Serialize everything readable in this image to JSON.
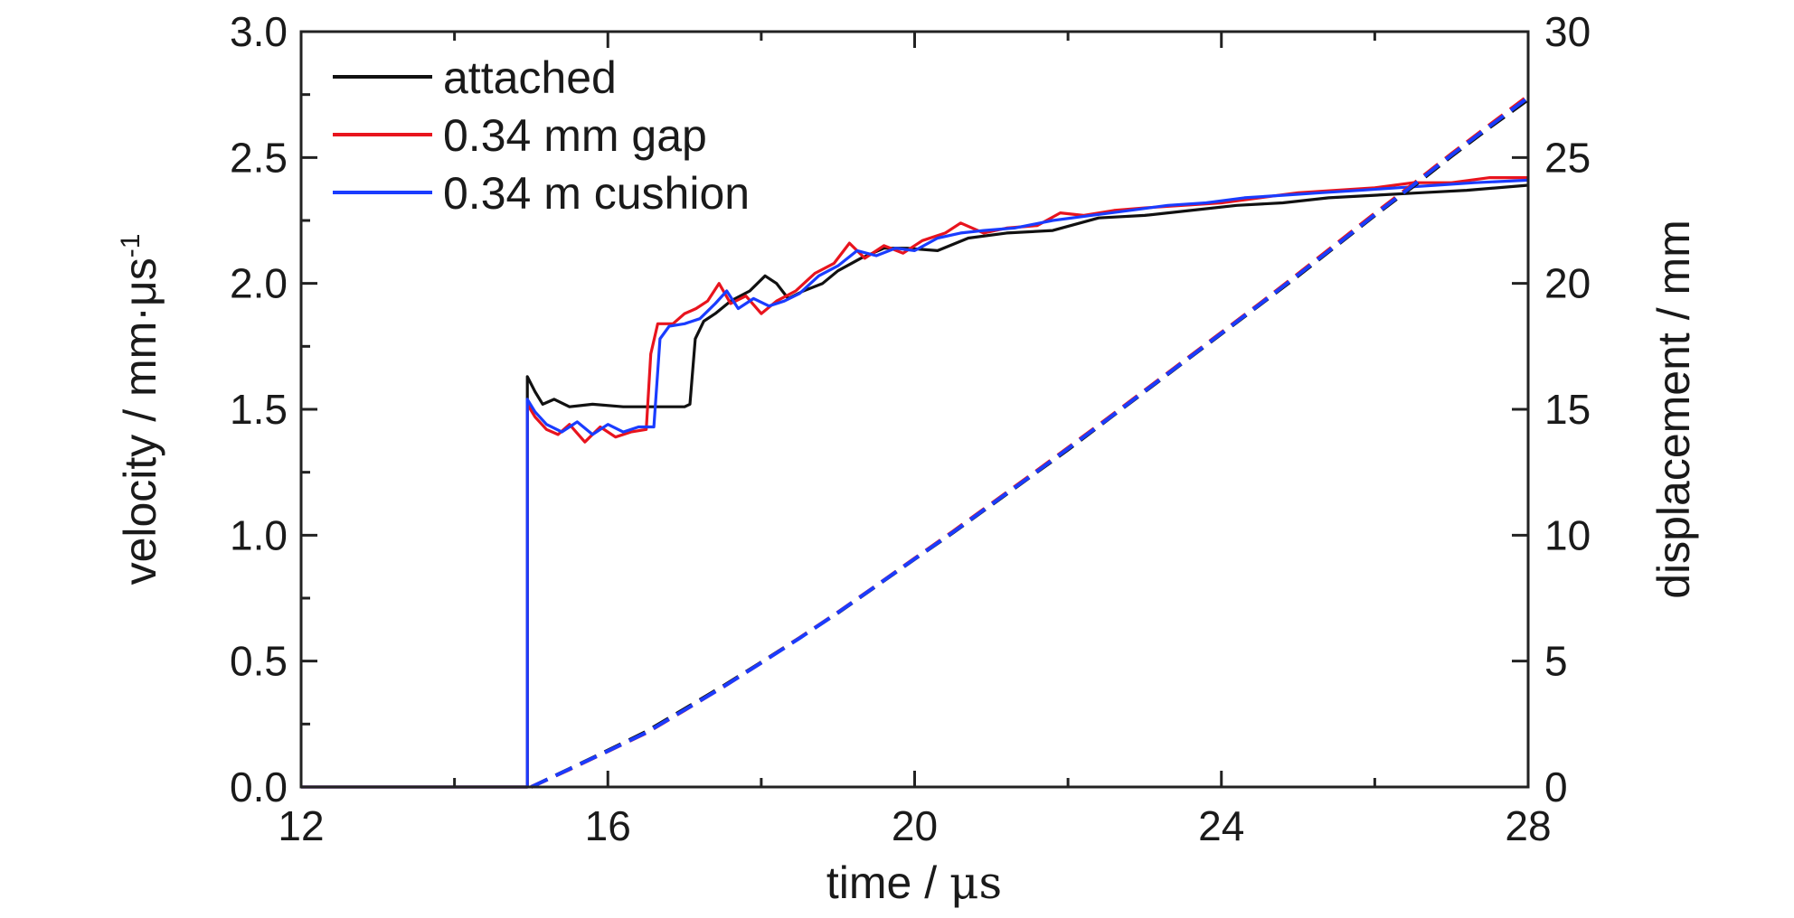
{
  "chart_data": {
    "type": "line",
    "x_axis": {
      "label_main": "time / ",
      "label_unit": "μs",
      "range": [
        12,
        28
      ],
      "ticks": [
        "12",
        "16",
        "20",
        "24",
        "28"
      ],
      "minor_step": 2
    },
    "y_left": {
      "label_main": "velocity / mm·μs",
      "label_sup": "-1",
      "range": [
        0,
        3
      ],
      "ticks": [
        "0.0",
        "0.5",
        "1.0",
        "1.5",
        "2.0",
        "2.5",
        "3.0"
      ],
      "minor_step": 0.25
    },
    "y_right": {
      "label": "displacement / mm",
      "range": [
        0,
        30
      ],
      "ticks": [
        "0",
        "5",
        "10",
        "15",
        "20",
        "25",
        "30"
      ]
    },
    "legend_position": "top-left",
    "grid": false,
    "series": [
      {
        "name": "attached",
        "color": "#111111",
        "axis": "left",
        "style": "solid",
        "points": [
          [
            12,
            0
          ],
          [
            14.95,
            0
          ],
          [
            14.95,
            1.63
          ],
          [
            15.05,
            1.57
          ],
          [
            15.15,
            1.52
          ],
          [
            15.3,
            1.54
          ],
          [
            15.5,
            1.51
          ],
          [
            15.8,
            1.52
          ],
          [
            16.2,
            1.51
          ],
          [
            16.6,
            1.51
          ],
          [
            17.0,
            1.51
          ],
          [
            17.07,
            1.52
          ],
          [
            17.14,
            1.78
          ],
          [
            17.25,
            1.85
          ],
          [
            17.4,
            1.88
          ],
          [
            17.6,
            1.93
          ],
          [
            17.85,
            1.97
          ],
          [
            18.05,
            2.03
          ],
          [
            18.2,
            2.0
          ],
          [
            18.35,
            1.94
          ],
          [
            18.55,
            1.97
          ],
          [
            18.8,
            2.0
          ],
          [
            19.0,
            2.05
          ],
          [
            19.3,
            2.1
          ],
          [
            19.6,
            2.14
          ],
          [
            19.9,
            2.14
          ],
          [
            20.3,
            2.13
          ],
          [
            20.7,
            2.18
          ],
          [
            21.2,
            2.2
          ],
          [
            21.8,
            2.21
          ],
          [
            22.4,
            2.26
          ],
          [
            23.0,
            2.27
          ],
          [
            23.6,
            2.29
          ],
          [
            24.2,
            2.31
          ],
          [
            24.8,
            2.32
          ],
          [
            25.4,
            2.34
          ],
          [
            26.0,
            2.35
          ],
          [
            26.6,
            2.36
          ],
          [
            27.2,
            2.37
          ],
          [
            28,
            2.39
          ]
        ]
      },
      {
        "name": "0.34 mm gap",
        "color": "#e8141e",
        "axis": "left",
        "style": "solid",
        "points": [
          [
            12,
            0
          ],
          [
            14.95,
            0
          ],
          [
            14.95,
            1.52
          ],
          [
            15.05,
            1.47
          ],
          [
            15.2,
            1.42
          ],
          [
            15.35,
            1.4
          ],
          [
            15.5,
            1.44
          ],
          [
            15.7,
            1.37
          ],
          [
            15.9,
            1.43
          ],
          [
            16.1,
            1.39
          ],
          [
            16.3,
            1.41
          ],
          [
            16.5,
            1.42
          ],
          [
            16.56,
            1.72
          ],
          [
            16.65,
            1.84
          ],
          [
            16.85,
            1.84
          ],
          [
            17.0,
            1.88
          ],
          [
            17.15,
            1.9
          ],
          [
            17.3,
            1.93
          ],
          [
            17.45,
            2.0
          ],
          [
            17.6,
            1.92
          ],
          [
            17.8,
            1.95
          ],
          [
            18.0,
            1.88
          ],
          [
            18.2,
            1.93
          ],
          [
            18.45,
            1.97
          ],
          [
            18.7,
            2.04
          ],
          [
            18.95,
            2.08
          ],
          [
            19.15,
            2.16
          ],
          [
            19.35,
            2.1
          ],
          [
            19.6,
            2.15
          ],
          [
            19.85,
            2.12
          ],
          [
            20.1,
            2.17
          ],
          [
            20.4,
            2.2
          ],
          [
            20.6,
            2.24
          ],
          [
            20.9,
            2.2
          ],
          [
            21.2,
            2.22
          ],
          [
            21.6,
            2.23
          ],
          [
            21.9,
            2.28
          ],
          [
            22.2,
            2.27
          ],
          [
            22.6,
            2.29
          ],
          [
            23.0,
            2.3
          ],
          [
            23.5,
            2.31
          ],
          [
            24.0,
            2.32
          ],
          [
            24.5,
            2.34
          ],
          [
            25.0,
            2.36
          ],
          [
            25.5,
            2.37
          ],
          [
            26.0,
            2.38
          ],
          [
            26.5,
            2.4
          ],
          [
            27.0,
            2.4
          ],
          [
            27.5,
            2.42
          ],
          [
            28,
            2.42
          ]
        ]
      },
      {
        "name": "0.34 m cushion",
        "color": "#1a3cff",
        "axis": "left",
        "style": "solid",
        "points": [
          [
            12,
            0
          ],
          [
            14.95,
            0
          ],
          [
            14.95,
            1.54
          ],
          [
            15.05,
            1.49
          ],
          [
            15.2,
            1.44
          ],
          [
            15.4,
            1.41
          ],
          [
            15.6,
            1.45
          ],
          [
            15.8,
            1.4
          ],
          [
            16.0,
            1.44
          ],
          [
            16.2,
            1.41
          ],
          [
            16.4,
            1.43
          ],
          [
            16.6,
            1.43
          ],
          [
            16.68,
            1.78
          ],
          [
            16.8,
            1.83
          ],
          [
            17.0,
            1.84
          ],
          [
            17.2,
            1.86
          ],
          [
            17.4,
            1.92
          ],
          [
            17.55,
            1.97
          ],
          [
            17.7,
            1.9
          ],
          [
            17.9,
            1.94
          ],
          [
            18.1,
            1.91
          ],
          [
            18.3,
            1.93
          ],
          [
            18.5,
            1.96
          ],
          [
            18.75,
            2.03
          ],
          [
            19.0,
            2.07
          ],
          [
            19.25,
            2.13
          ],
          [
            19.5,
            2.11
          ],
          [
            19.75,
            2.14
          ],
          [
            20.0,
            2.13
          ],
          [
            20.3,
            2.18
          ],
          [
            20.6,
            2.2
          ],
          [
            20.9,
            2.21
          ],
          [
            21.3,
            2.22
          ],
          [
            21.8,
            2.25
          ],
          [
            22.3,
            2.27
          ],
          [
            22.8,
            2.29
          ],
          [
            23.3,
            2.31
          ],
          [
            23.8,
            2.32
          ],
          [
            24.3,
            2.34
          ],
          [
            24.8,
            2.35
          ],
          [
            25.3,
            2.36
          ],
          [
            25.8,
            2.37
          ],
          [
            26.3,
            2.38
          ],
          [
            26.8,
            2.39
          ],
          [
            27.3,
            2.4
          ],
          [
            28,
            2.41
          ]
        ]
      },
      {
        "name": "",
        "color": "#111111",
        "axis": "right",
        "style": "dashed",
        "points": [
          [
            15.0,
            0
          ],
          [
            15.5,
            0.72
          ],
          [
            16,
            1.45
          ],
          [
            16.5,
            2.2
          ],
          [
            17,
            3.1
          ],
          [
            17.5,
            4.0
          ],
          [
            18,
            4.95
          ],
          [
            18.5,
            5.92
          ],
          [
            19,
            6.92
          ],
          [
            19.5,
            7.98
          ],
          [
            20,
            9.05
          ],
          [
            20.5,
            10.1
          ],
          [
            21,
            11.2
          ],
          [
            21.5,
            12.3
          ],
          [
            22,
            13.4
          ],
          [
            22.5,
            14.55
          ],
          [
            23,
            15.7
          ],
          [
            23.5,
            16.85
          ],
          [
            24,
            18.0
          ],
          [
            24.5,
            19.15
          ],
          [
            25,
            20.3
          ],
          [
            25.5,
            21.5
          ],
          [
            26,
            22.7
          ],
          [
            26.5,
            23.85
          ],
          [
            27,
            25.05
          ],
          [
            27.5,
            26.2
          ],
          [
            28,
            27.3
          ]
        ]
      },
      {
        "name": "",
        "color": "#e8141e",
        "axis": "right",
        "style": "dashed",
        "points": [
          [
            15.0,
            0
          ],
          [
            15.5,
            0.7
          ],
          [
            16,
            1.42
          ],
          [
            16.5,
            2.15
          ],
          [
            17,
            3.05
          ],
          [
            17.5,
            3.97
          ],
          [
            18,
            4.93
          ],
          [
            18.5,
            5.92
          ],
          [
            19,
            6.94
          ],
          [
            19.5,
            8.0
          ],
          [
            20,
            9.08
          ],
          [
            20.5,
            10.15
          ],
          [
            21,
            11.25
          ],
          [
            21.5,
            12.35
          ],
          [
            22,
            13.47
          ],
          [
            22.5,
            14.6
          ],
          [
            23,
            15.75
          ],
          [
            23.5,
            16.9
          ],
          [
            24,
            18.05
          ],
          [
            24.5,
            19.2
          ],
          [
            25,
            20.38
          ],
          [
            25.5,
            21.58
          ],
          [
            26,
            22.78
          ],
          [
            26.5,
            23.95
          ],
          [
            27,
            25.15
          ],
          [
            27.5,
            26.3
          ],
          [
            28,
            27.45
          ]
        ]
      },
      {
        "name": "",
        "color": "#1a3cff",
        "axis": "right",
        "style": "dashed",
        "points": [
          [
            15.0,
            0
          ],
          [
            15.5,
            0.71
          ],
          [
            16,
            1.43
          ],
          [
            16.5,
            2.16
          ],
          [
            17,
            3.06
          ],
          [
            17.5,
            3.97
          ],
          [
            18,
            4.93
          ],
          [
            18.5,
            5.91
          ],
          [
            19,
            6.93
          ],
          [
            19.5,
            7.99
          ],
          [
            20,
            9.06
          ],
          [
            20.5,
            10.12
          ],
          [
            21,
            11.22
          ],
          [
            21.5,
            12.32
          ],
          [
            22,
            13.44
          ],
          [
            22.5,
            14.57
          ],
          [
            23,
            15.72
          ],
          [
            23.5,
            16.87
          ],
          [
            24,
            18.02
          ],
          [
            24.5,
            19.17
          ],
          [
            25,
            20.34
          ],
          [
            25.5,
            21.53
          ],
          [
            26,
            22.73
          ],
          [
            26.5,
            23.9
          ],
          [
            27,
            25.1
          ],
          [
            27.5,
            26.25
          ],
          [
            28,
            27.38
          ]
        ]
      }
    ]
  }
}
